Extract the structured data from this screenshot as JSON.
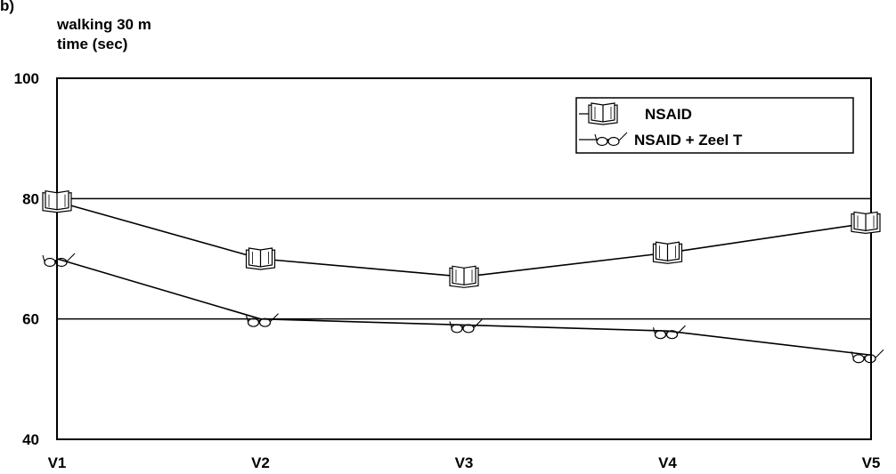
{
  "panel_label": "b)",
  "chart_data": {
    "type": "line",
    "ylabel_line1": "walking 30 m",
    "ylabel_line2": "time (sec)",
    "categories": [
      "V1",
      "V2",
      "V3",
      "V4",
      "V5"
    ],
    "ylim": [
      40,
      100
    ],
    "yticks": [
      "100",
      "80",
      "60",
      "40"
    ],
    "ytick_values": [
      100,
      80,
      60,
      40
    ],
    "gridlines": [
      80,
      60
    ],
    "legend_position": "top-right",
    "series": [
      {
        "name": "NSAID",
        "marker": "book-icon",
        "values": [
          79.5,
          70,
          67,
          71,
          76
        ]
      },
      {
        "name": "NSAID + Zeel T",
        "marker": "glasses-icon",
        "values": [
          70,
          60,
          59,
          58,
          54
        ]
      }
    ]
  }
}
